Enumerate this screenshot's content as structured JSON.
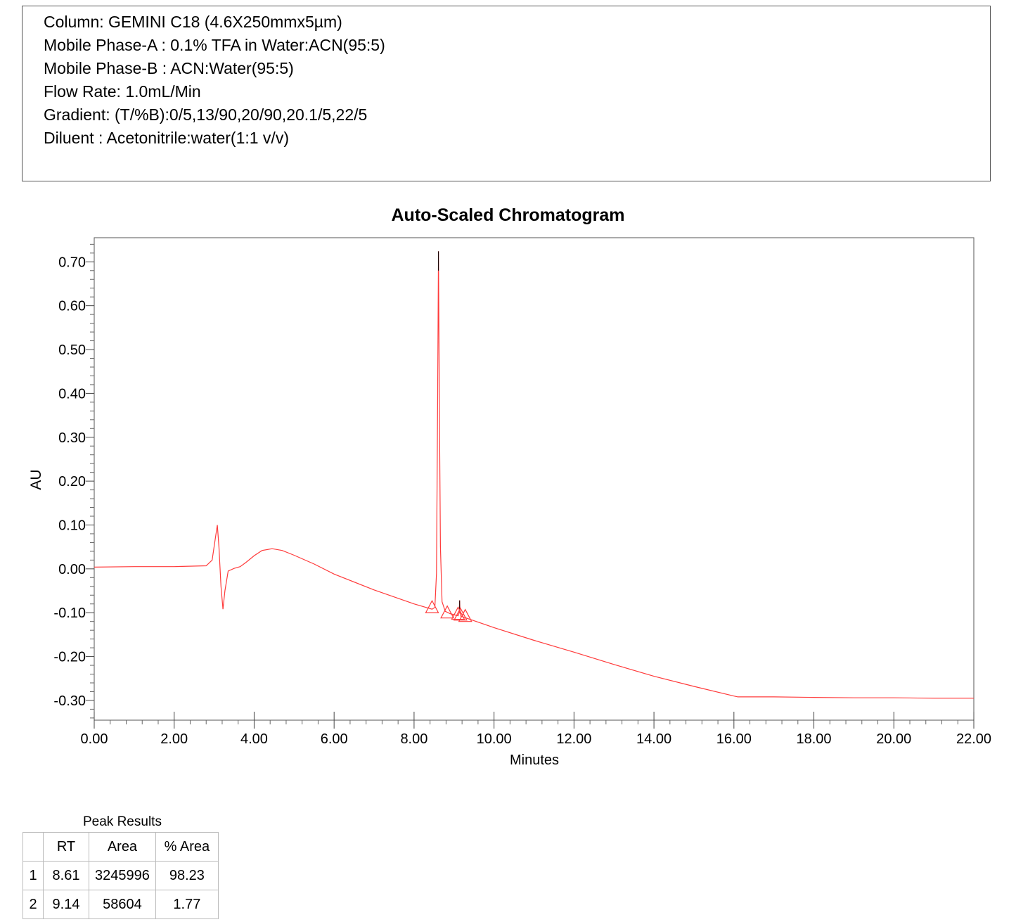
{
  "method": {
    "lines": [
      "Column: GEMINI C18 (4.6X250mmx5µm)",
      "Mobile Phase-A : 0.1% TFA in Water:ACN(95:5)",
      "Mobile Phase-B : ACN:Water(95:5)",
      "Flow Rate: 1.0mL/Min",
      "Gradient: (T/%B):0/5,13/90,20/90,20.1/5,22/5",
      "Diluent : Acetonitrile:water(1:1 v/v)"
    ]
  },
  "chart_data": {
    "type": "line",
    "title": "Auto-Scaled Chromatogram",
    "xlabel": "Minutes",
    "ylabel": "AU",
    "xlim": [
      0,
      22
    ],
    "ylim": [
      -0.345,
      0.755
    ],
    "x_ticks": [
      "0.00",
      "2.00",
      "4.00",
      "6.00",
      "8.00",
      "10.00",
      "12.00",
      "14.00",
      "16.00",
      "18.00",
      "20.00",
      "22.00"
    ],
    "y_ticks": [
      "0.70",
      "0.60",
      "0.50",
      "0.40",
      "0.30",
      "0.20",
      "0.10",
      "0.00",
      "-0.10",
      "-0.20",
      "-0.30"
    ],
    "grid": false,
    "line_color": "#ff3b3b",
    "marker_color": "#000000",
    "series": [
      {
        "x": [
          0.0,
          1.0,
          2.0,
          2.8,
          2.95,
          3.03,
          3.08,
          3.12,
          3.17,
          3.22,
          3.27,
          3.35,
          3.5,
          3.65,
          3.8,
          4.0,
          4.2,
          4.45,
          4.7,
          5.0,
          5.5,
          6.0,
          7.0,
          8.0,
          8.45,
          8.52,
          8.56,
          8.59,
          8.61,
          8.63,
          8.66,
          8.7,
          8.78,
          8.9,
          9.1,
          9.13,
          9.14,
          9.15,
          9.17,
          9.3,
          10.0,
          11.0,
          12.0,
          13.0,
          14.0,
          15.0,
          16.0,
          16.1,
          17.0,
          18.0,
          19.0,
          20.0,
          21.0,
          22.0
        ],
        "y": [
          0.004,
          0.005,
          0.005,
          0.007,
          0.02,
          0.07,
          0.1,
          0.05,
          -0.04,
          -0.092,
          -0.05,
          -0.005,
          0.001,
          0.005,
          0.015,
          0.03,
          0.042,
          0.046,
          0.042,
          0.031,
          0.011,
          -0.012,
          -0.048,
          -0.08,
          -0.092,
          -0.088,
          -0.01,
          0.4,
          0.724,
          0.42,
          0.05,
          -0.075,
          -0.097,
          -0.102,
          -0.107,
          -0.1,
          -0.072,
          -0.099,
          -0.108,
          -0.112,
          -0.134,
          -0.163,
          -0.19,
          -0.218,
          -0.245,
          -0.268,
          -0.29,
          -0.292,
          -0.292,
          -0.293,
          -0.294,
          -0.294,
          -0.295,
          -0.295
        ]
      }
    ],
    "markers": [
      {
        "x": 8.45,
        "y": -0.092
      },
      {
        "x": 8.83,
        "y": -0.104
      },
      {
        "x": 9.1,
        "y": -0.107
      },
      {
        "x": 9.16,
        "y": -0.109
      },
      {
        "x": 9.28,
        "y": -0.112
      }
    ]
  },
  "peak_results": {
    "caption": "Peak Results",
    "headers": [
      "RT",
      "Area",
      "% Area"
    ],
    "rows": [
      {
        "index": "1",
        "rt": "8.61",
        "area": "3245996",
        "pct_area": "98.23"
      },
      {
        "index": "2",
        "rt": "9.14",
        "area": "58604",
        "pct_area": "1.77"
      }
    ]
  }
}
